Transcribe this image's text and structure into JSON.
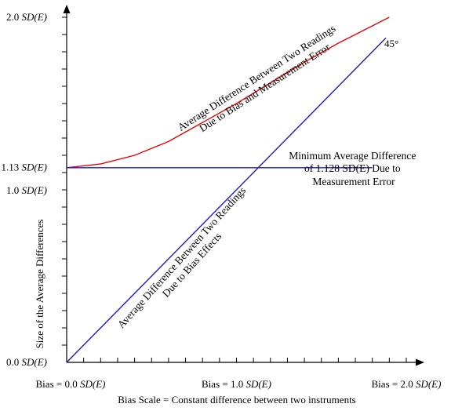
{
  "chart_data": {
    "type": "line",
    "ylabel": "Size of the Average Differences",
    "xlabel": "Bias Scale = Constant difference between two instruments",
    "xlim": [
      0,
      2
    ],
    "ylim": [
      0,
      2
    ],
    "x_ticks": [
      {
        "value": 0,
        "prefix": "Bias = 0.0 ",
        "unit": "SD(E)"
      },
      {
        "value": 1,
        "prefix": "Bias = 1.0 ",
        "unit": "SD(E)"
      },
      {
        "value": 2,
        "prefix": "Bias = 2.0 ",
        "unit": "SD(E)"
      }
    ],
    "y_ticks": [
      {
        "value": 0,
        "prefix": "0.0 ",
        "unit": "SD(E)"
      },
      {
        "value": 1,
        "prefix": "1.0 ",
        "unit": "SD(E)"
      },
      {
        "value": 1.13,
        "prefix": "1.13 ",
        "unit": "SD(E)"
      },
      {
        "value": 2,
        "prefix": "2.0 ",
        "unit": "SD(E)"
      }
    ],
    "minor_ticks": 20,
    "series": [
      {
        "color": "#ee0000",
        "x": [
          0,
          0.2,
          0.4,
          0.6,
          0.8,
          1.0,
          1.2,
          1.4,
          1.6,
          1.8,
          1.9
        ],
        "values": [
          1.128,
          1.15,
          1.2,
          1.28,
          1.39,
          1.5,
          1.62,
          1.74,
          1.85,
          1.95,
          2.0
        ]
      },
      {
        "color": "#1a1acc",
        "x": [
          0,
          1.8
        ],
        "values": [
          1.128,
          1.128
        ]
      },
      {
        "color": "#1a1acc",
        "x": [
          0,
          1.88
        ],
        "values": [
          0,
          1.88
        ]
      }
    ],
    "annotations": [
      {
        "lines": [
          "Average Difference Between Two Readings",
          "Due to Bias and Measurement Error"
        ]
      },
      {
        "lines": [
          "Minimum Average Difference",
          "of 1.128 SD(E) Due to",
          "Measurement Error"
        ]
      },
      {
        "lines": [
          "Average Difference Between Two Readings",
          "Due to Bias Effects"
        ]
      },
      {
        "lines": [
          "45°"
        ]
      }
    ]
  }
}
